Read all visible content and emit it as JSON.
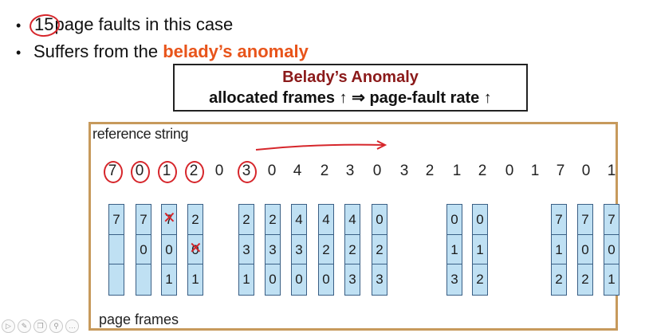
{
  "bullets": {
    "line1_count": "15",
    "line1_text": "page faults in this case",
    "line2_prefix": "Suffers from the ",
    "line2_highlight": "belady’s anomaly"
  },
  "titlebox": {
    "title": "Belady’s Anomaly",
    "subtitle": "allocated frames ↑ ⇒  page-fault rate ↑"
  },
  "figure": {
    "reference_label": "reference string",
    "frames_label": "page frames",
    "reference_string": [
      "7",
      "0",
      "1",
      "2",
      "0",
      "3",
      "0",
      "4",
      "2",
      "3",
      "0",
      "3",
      "2",
      "1",
      "2",
      "0",
      "1",
      "7",
      "0",
      "1"
    ],
    "frame_columns": [
      [
        "7",
        "",
        ""
      ],
      [
        "7",
        "0",
        ""
      ],
      [
        "7",
        "0",
        "1"
      ],
      [
        "2",
        "0",
        "1"
      ],
      [
        "2",
        "3",
        "1"
      ],
      [
        "2",
        "3",
        "0"
      ],
      [
        "4",
        "3",
        "0"
      ],
      [
        "4",
        "2",
        "0"
      ],
      [
        "4",
        "2",
        "3"
      ],
      [
        "0",
        "2",
        "3"
      ],
      [
        "0",
        "1",
        "3"
      ],
      [
        "0",
        "1",
        "2"
      ],
      [
        "7",
        "1",
        "2"
      ],
      [
        "7",
        "0",
        "2"
      ],
      [
        "7",
        "0",
        "1"
      ]
    ]
  },
  "colors": {
    "highlight": "#e8541a",
    "title_red": "#8b1a1a",
    "annotation_red": "#d6262b",
    "frame_fill": "#bfe0f3",
    "figure_border": "#c79a5c"
  },
  "toolbar": {
    "icons": [
      "play-icon",
      "pen-icon",
      "copy-icon",
      "zoom-icon",
      "more-icon"
    ]
  }
}
